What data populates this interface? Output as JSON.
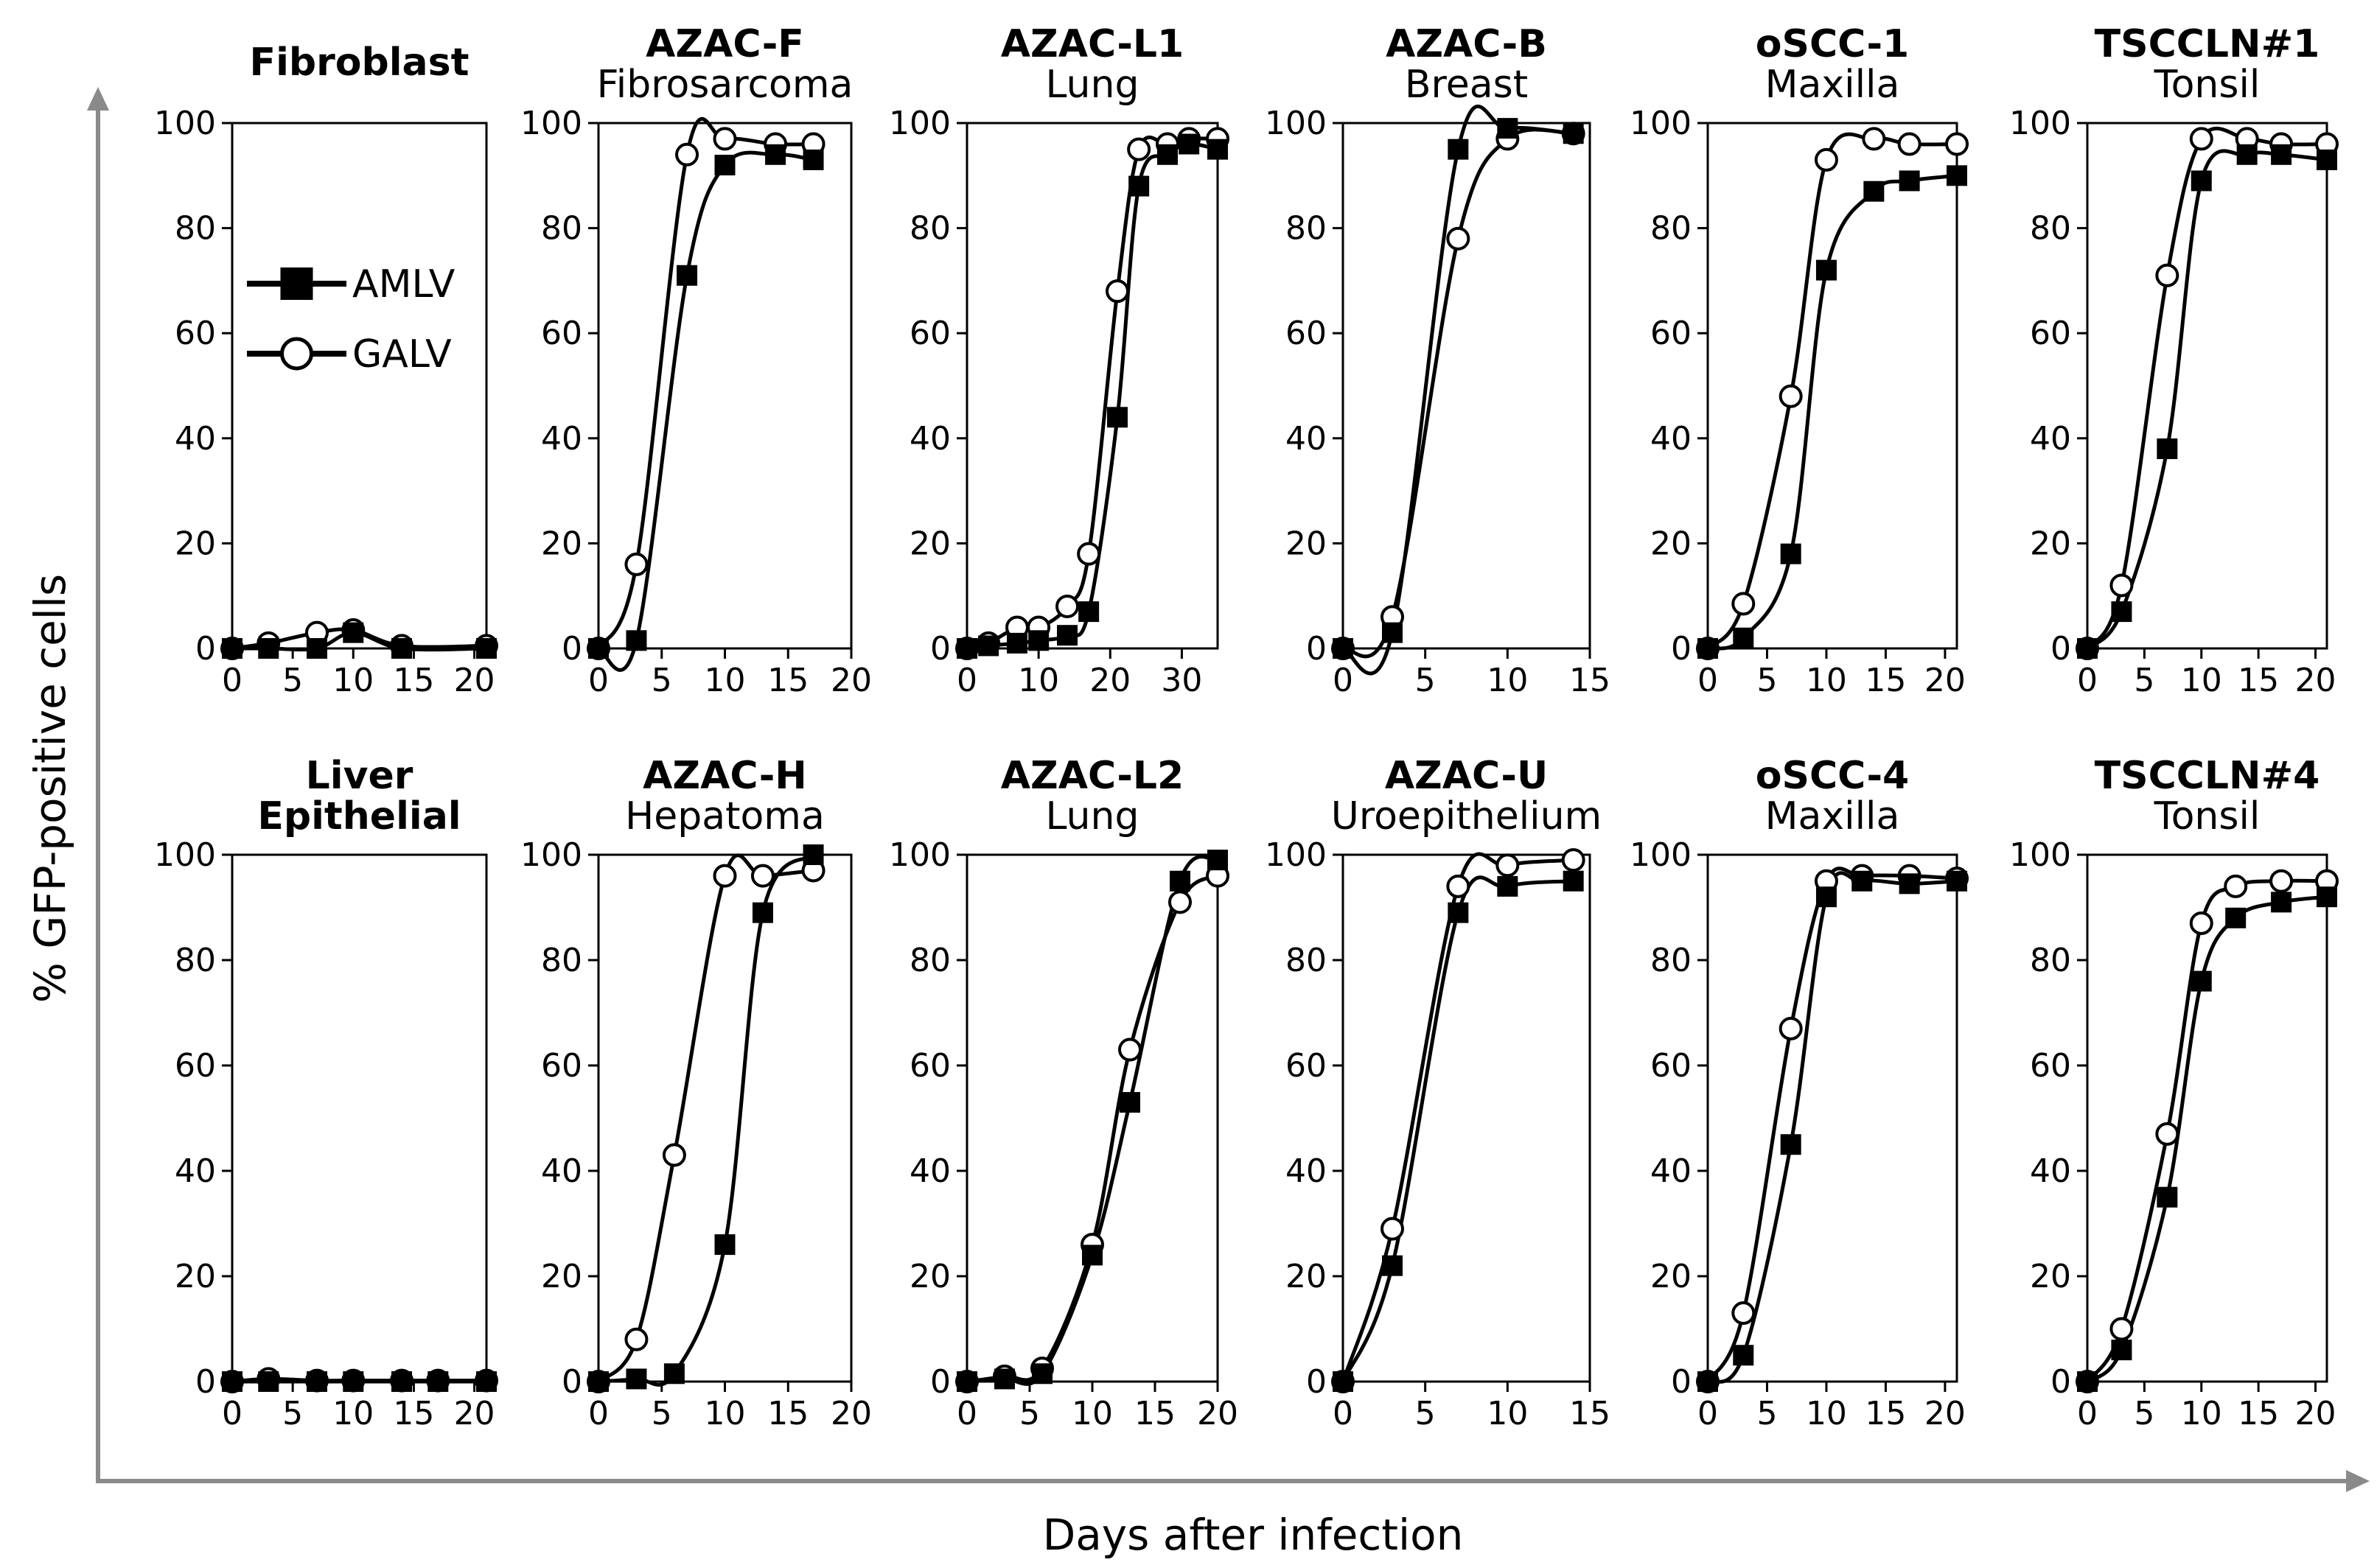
{
  "figure": {
    "ylabel": "% GFP-positive cells",
    "xlabel": "Days after infection",
    "legend": [
      {
        "name": "AMLV",
        "marker": "filled-square"
      },
      {
        "name": "GALV",
        "marker": "open-circle"
      }
    ]
  },
  "chart_data": [
    {
      "type": "line",
      "title": "Fibroblast",
      "subtitle": "",
      "x_ticks": [
        0,
        5,
        10,
        15,
        20
      ],
      "xlim": [
        0,
        21
      ],
      "y_ticks": [
        0,
        20,
        40,
        60,
        80,
        100
      ],
      "ylim": [
        0,
        100
      ],
      "series": [
        {
          "name": "AMLV",
          "x": [
            0,
            3,
            7,
            10,
            14,
            21
          ],
          "y": [
            0,
            0,
            0,
            3,
            0,
            0
          ]
        },
        {
          "name": "GALV",
          "x": [
            0,
            3,
            7,
            10,
            14,
            21
          ],
          "y": [
            0,
            1,
            3,
            3.5,
            0.5,
            0.5
          ]
        }
      ]
    },
    {
      "type": "line",
      "title": "AZAC-F",
      "subtitle": "Fibrosarcoma",
      "x_ticks": [
        0,
        5,
        10,
        15,
        20
      ],
      "xlim": [
        0,
        20
      ],
      "y_ticks": [
        0,
        20,
        40,
        60,
        80,
        100
      ],
      "ylim": [
        0,
        100
      ],
      "series": [
        {
          "name": "AMLV",
          "x": [
            0,
            3,
            7,
            10,
            14,
            17
          ],
          "y": [
            0,
            1.5,
            71,
            92,
            94,
            93
          ]
        },
        {
          "name": "GALV",
          "x": [
            0,
            3,
            7,
            10,
            14,
            17
          ],
          "y": [
            0,
            16,
            94,
            97,
            96,
            96
          ]
        }
      ]
    },
    {
      "type": "line",
      "title": "AZAC-L1",
      "subtitle": "Lung",
      "x_ticks": [
        0,
        10,
        20,
        30
      ],
      "xlim": [
        0,
        35
      ],
      "y_ticks": [
        0,
        20,
        40,
        60,
        80,
        100
      ],
      "ylim": [
        0,
        100
      ],
      "series": [
        {
          "name": "AMLV",
          "x": [
            0,
            3,
            7,
            10,
            14,
            17,
            21,
            24,
            28,
            31,
            35
          ],
          "y": [
            0,
            0.5,
            1,
            1.5,
            2.5,
            7,
            44,
            88,
            94,
            96,
            95
          ]
        },
        {
          "name": "GALV",
          "x": [
            0,
            3,
            7,
            10,
            14,
            17,
            21,
            24,
            28,
            31,
            35
          ],
          "y": [
            0,
            1,
            4,
            4,
            8,
            18,
            68,
            95,
            96,
            97,
            97
          ]
        }
      ]
    },
    {
      "type": "line",
      "title": "AZAC-B",
      "subtitle": "Breast",
      "x_ticks": [
        0,
        5,
        10,
        15
      ],
      "xlim": [
        0,
        15
      ],
      "y_ticks": [
        0,
        20,
        40,
        60,
        80,
        100
      ],
      "ylim": [
        0,
        100
      ],
      "series": [
        {
          "name": "AMLV",
          "x": [
            0,
            3,
            7,
            10,
            14
          ],
          "y": [
            0,
            3,
            95,
            99,
            98
          ]
        },
        {
          "name": "GALV",
          "x": [
            0,
            3,
            7,
            10,
            14
          ],
          "y": [
            0,
            6,
            78,
            97,
            98
          ]
        }
      ]
    },
    {
      "type": "line",
      "title": "oSCC-1",
      "subtitle": "Maxilla",
      "x_ticks": [
        0,
        5,
        10,
        15,
        20
      ],
      "xlim": [
        0,
        21
      ],
      "y_ticks": [
        0,
        20,
        40,
        60,
        80,
        100
      ],
      "ylim": [
        0,
        100
      ],
      "series": [
        {
          "name": "AMLV",
          "x": [
            0,
            3,
            7,
            10,
            14,
            17,
            21
          ],
          "y": [
            0,
            2,
            18,
            72,
            87,
            89,
            90
          ]
        },
        {
          "name": "GALV",
          "x": [
            0,
            3,
            7,
            10,
            14,
            17,
            21
          ],
          "y": [
            0,
            8.5,
            48,
            93,
            97,
            96,
            96
          ]
        }
      ]
    },
    {
      "type": "line",
      "title": "TSCCLN#1",
      "subtitle": "Tonsil",
      "x_ticks": [
        0,
        5,
        10,
        15,
        20
      ],
      "xlim": [
        0,
        21
      ],
      "y_ticks": [
        0,
        20,
        40,
        60,
        80,
        100
      ],
      "ylim": [
        0,
        100
      ],
      "series": [
        {
          "name": "AMLV",
          "x": [
            0,
            3,
            7,
            10,
            14,
            17,
            21
          ],
          "y": [
            0,
            7,
            38,
            89,
            94,
            94,
            93
          ]
        },
        {
          "name": "GALV",
          "x": [
            0,
            3,
            7,
            10,
            14,
            17,
            21
          ],
          "y": [
            0,
            12,
            71,
            97,
            97,
            96,
            96
          ]
        }
      ]
    },
    {
      "type": "line",
      "title": "Liver",
      "title2": "Epithelial",
      "subtitle": "",
      "x_ticks": [
        0,
        5,
        10,
        15,
        20
      ],
      "xlim": [
        0,
        21
      ],
      "y_ticks": [
        0,
        20,
        40,
        60,
        80,
        100
      ],
      "ylim": [
        0,
        100
      ],
      "series": [
        {
          "name": "AMLV",
          "x": [
            0,
            3,
            7,
            10,
            14,
            17,
            21
          ],
          "y": [
            0,
            0,
            0,
            0,
            0,
            0,
            0
          ]
        },
        {
          "name": "GALV",
          "x": [
            0,
            3,
            7,
            10,
            14,
            17,
            21
          ],
          "y": [
            0,
            0.5,
            0.2,
            0.2,
            0.2,
            0.2,
            0.2
          ]
        }
      ]
    },
    {
      "type": "line",
      "title": "AZAC-H",
      "subtitle": "Hepatoma",
      "x_ticks": [
        0,
        5,
        10,
        15,
        20
      ],
      "xlim": [
        0,
        20
      ],
      "y_ticks": [
        0,
        20,
        40,
        60,
        80,
        100
      ],
      "ylim": [
        0,
        100
      ],
      "series": [
        {
          "name": "AMLV",
          "x": [
            0,
            3,
            6,
            10,
            13,
            17
          ],
          "y": [
            0,
            0.5,
            1.5,
            26,
            89,
            100
          ]
        },
        {
          "name": "GALV",
          "x": [
            0,
            3,
            6,
            10,
            13,
            17
          ],
          "y": [
            0,
            8,
            43,
            96,
            96,
            97
          ]
        }
      ]
    },
    {
      "type": "line",
      "title": "AZAC-L2",
      "subtitle": "Lung",
      "x_ticks": [
        0,
        5,
        10,
        15,
        20
      ],
      "xlim": [
        0,
        20
      ],
      "y_ticks": [
        0,
        20,
        40,
        60,
        80,
        100
      ],
      "ylim": [
        0,
        100
      ],
      "series": [
        {
          "name": "AMLV",
          "x": [
            0,
            3,
            6,
            10,
            13,
            17,
            20
          ],
          "y": [
            0,
            0.5,
            1.5,
            24,
            53,
            95,
            99
          ]
        },
        {
          "name": "GALV",
          "x": [
            0,
            3,
            6,
            10,
            13,
            17,
            20
          ],
          "y": [
            0,
            1,
            2.5,
            26,
            63,
            91,
            96
          ]
        }
      ]
    },
    {
      "type": "line",
      "title": "AZAC-U",
      "subtitle": "Uroepithelium",
      "x_ticks": [
        0,
        5,
        10,
        15
      ],
      "xlim": [
        0,
        15
      ],
      "y_ticks": [
        0,
        20,
        40,
        60,
        80,
        100
      ],
      "ylim": [
        0,
        100
      ],
      "series": [
        {
          "name": "AMLV",
          "x": [
            0,
            3,
            7,
            10,
            14
          ],
          "y": [
            0,
            22,
            89,
            94,
            95
          ]
        },
        {
          "name": "GALV",
          "x": [
            0,
            3,
            7,
            10,
            14
          ],
          "y": [
            0,
            29,
            94,
            98,
            99
          ]
        }
      ]
    },
    {
      "type": "line",
      "title": "oSCC-4",
      "subtitle": "Maxilla",
      "x_ticks": [
        0,
        5,
        10,
        15,
        20
      ],
      "xlim": [
        0,
        21
      ],
      "y_ticks": [
        0,
        20,
        40,
        60,
        80,
        100
      ],
      "ylim": [
        0,
        100
      ],
      "series": [
        {
          "name": "AMLV",
          "x": [
            0,
            3,
            7,
            10,
            13,
            17,
            21
          ],
          "y": [
            0,
            5,
            45,
            92,
            95,
            94.5,
            95
          ]
        },
        {
          "name": "GALV",
          "x": [
            0,
            3,
            7,
            10,
            13,
            17,
            21
          ],
          "y": [
            0,
            13,
            67,
            95,
            96,
            96,
            95.5
          ]
        }
      ]
    },
    {
      "type": "line",
      "title": "TSCCLN#4",
      "subtitle": "Tonsil",
      "x_ticks": [
        0,
        5,
        10,
        15,
        20
      ],
      "xlim": [
        0,
        21
      ],
      "y_ticks": [
        0,
        20,
        40,
        60,
        80,
        100
      ],
      "ylim": [
        0,
        100
      ],
      "series": [
        {
          "name": "AMLV",
          "x": [
            0,
            3,
            7,
            10,
            13,
            17,
            21
          ],
          "y": [
            0,
            6,
            35,
            76,
            88,
            91,
            92
          ]
        },
        {
          "name": "GALV",
          "x": [
            0,
            3,
            7,
            10,
            13,
            17,
            21
          ],
          "y": [
            0,
            10,
            47,
            87,
            94,
            95,
            95
          ]
        }
      ]
    }
  ]
}
